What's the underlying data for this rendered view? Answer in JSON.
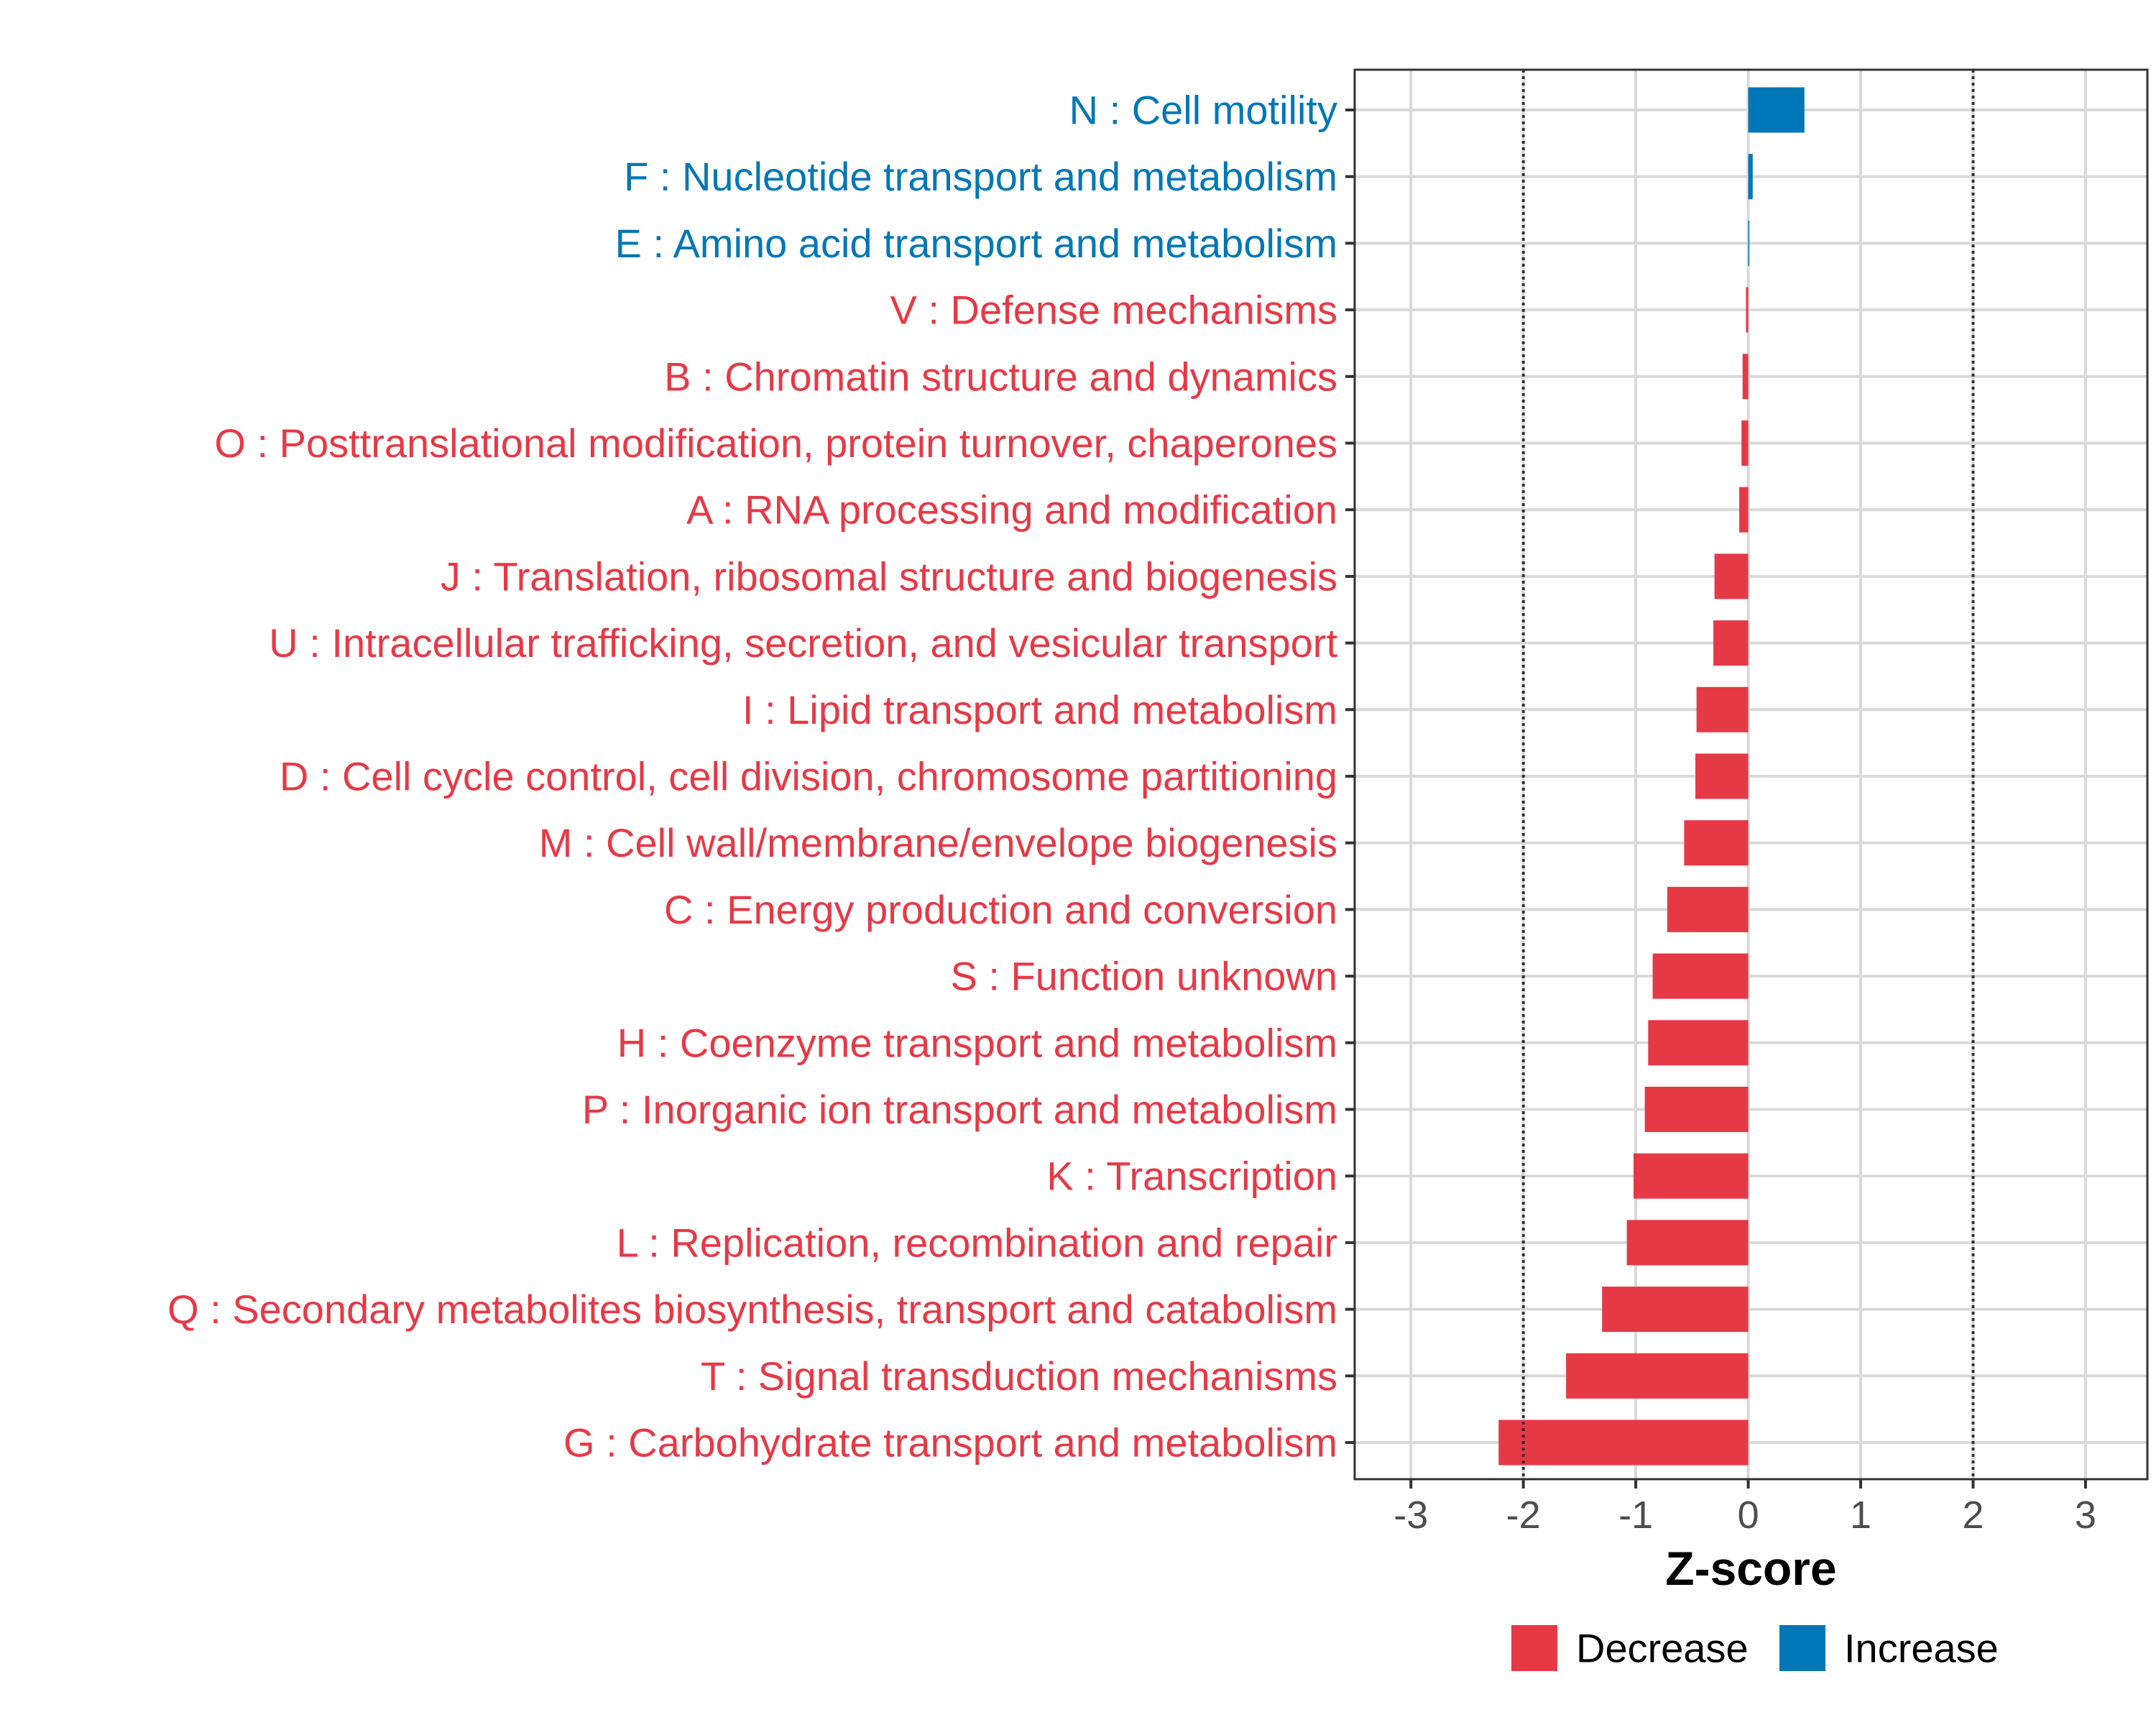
{
  "chart_data": {
    "type": "bar",
    "orientation": "horizontal",
    "xlabel": "Z-score",
    "ylabel": "",
    "xlim": [
      -3.5,
      3.55
    ],
    "xticks": [
      -3,
      -2,
      -1,
      0,
      1,
      2,
      3
    ],
    "threshold_lines": [
      -2,
      2
    ],
    "grid": true,
    "legend_position": "bottom",
    "colors": {
      "Decrease": "#E63946",
      "Increase": "#0077B6"
    },
    "legend": [
      {
        "key": "Decrease",
        "label": "Decrease"
      },
      {
        "key": "Increase",
        "label": "Increase"
      }
    ],
    "categories": [
      {
        "label": "N : Cell motility",
        "value": 0.5,
        "direction": "Increase"
      },
      {
        "label": "F : Nucleotide transport and metabolism",
        "value": 0.04,
        "direction": "Increase"
      },
      {
        "label": "E : Amino acid transport and metabolism",
        "value": 0.01,
        "direction": "Increase"
      },
      {
        "label": "V : Defense mechanisms",
        "value": -0.02,
        "direction": "Decrease"
      },
      {
        "label": "B : Chromatin structure and dynamics",
        "value": -0.05,
        "direction": "Decrease"
      },
      {
        "label": "O : Posttranslational modification, protein turnover, chaperones",
        "value": -0.06,
        "direction": "Decrease"
      },
      {
        "label": "A : RNA processing and modification",
        "value": -0.08,
        "direction": "Decrease"
      },
      {
        "label": "J : Translation, ribosomal structure and biogenesis",
        "value": -0.3,
        "direction": "Decrease"
      },
      {
        "label": "U : Intracellular trafficking, secretion, and vesicular transport",
        "value": -0.31,
        "direction": "Decrease"
      },
      {
        "label": "I : Lipid transport and metabolism",
        "value": -0.46,
        "direction": "Decrease"
      },
      {
        "label": "D : Cell cycle control, cell division, chromosome partitioning",
        "value": -0.47,
        "direction": "Decrease"
      },
      {
        "label": "M : Cell wall/membrane/envelope biogenesis",
        "value": -0.57,
        "direction": "Decrease"
      },
      {
        "label": "C : Energy production and conversion",
        "value": -0.72,
        "direction": "Decrease"
      },
      {
        "label": "S : Function unknown",
        "value": -0.85,
        "direction": "Decrease"
      },
      {
        "label": "H : Coenzyme transport and metabolism",
        "value": -0.89,
        "direction": "Decrease"
      },
      {
        "label": "P : Inorganic ion transport and metabolism",
        "value": -0.92,
        "direction": "Decrease"
      },
      {
        "label": "K : Transcription",
        "value": -1.02,
        "direction": "Decrease"
      },
      {
        "label": "L : Replication, recombination and repair",
        "value": -1.08,
        "direction": "Decrease"
      },
      {
        "label": "Q : Secondary metabolites biosynthesis, transport and catabolism",
        "value": -1.3,
        "direction": "Decrease"
      },
      {
        "label": "T : Signal transduction mechanisms",
        "value": -1.62,
        "direction": "Decrease"
      },
      {
        "label": "G : Carbohydrate transport and metabolism",
        "value": -2.22,
        "direction": "Decrease"
      }
    ]
  }
}
